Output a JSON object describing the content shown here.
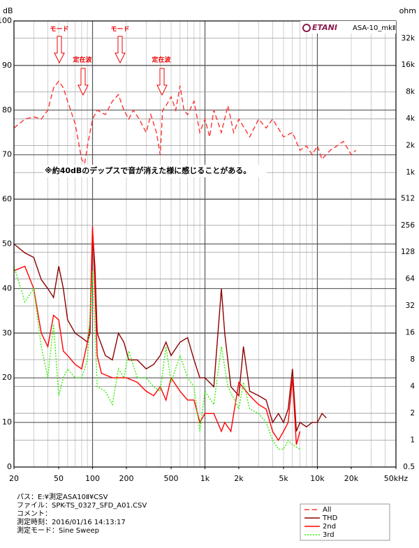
{
  "chart_data": {
    "type": "line",
    "y_axis_label": "dB",
    "y2_axis_label": "ohm",
    "brand": "ETANI",
    "model": "ASA-10_mkⅡ",
    "annotations": [
      "モード",
      "モード",
      "定在波",
      "定在波"
    ],
    "note": "※約40dBのデップスで音が消えた様に感じることがある。",
    "info": [
      "パス：E:¥測定ASA10Ⅱ¥CSV",
      "ファイル：SPK-TS_0327_SFD_A01.CSV",
      "コメント：",
      "測定時刻：2016/01/16 14:13:17",
      "測定モード：Sine Sweep"
    ],
    "x_scale": "log",
    "y2_scale": "log",
    "grid": true,
    "legend": "bottom-right",
    "xlim": [
      20,
      50000
    ],
    "xticks": [
      20,
      50,
      100,
      200,
      500,
      {
        "value": 1000,
        "label": "1k"
      },
      {
        "value": 2000,
        "label": "2k"
      },
      {
        "value": 5000,
        "label": "5k"
      },
      {
        "value": 10000,
        "label": "10k"
      },
      {
        "value": 20000,
        "label": "20k"
      },
      {
        "value": 50000,
        "label": "50kHz"
      }
    ],
    "ylim": [
      0,
      100
    ],
    "yticks": [
      0,
      10,
      20,
      30,
      40,
      50,
      60,
      70,
      80,
      90,
      100
    ],
    "y2lim": [
      0.5,
      50000
    ],
    "y2ticks": [
      0.5,
      1,
      2,
      4,
      8,
      16,
      32,
      64,
      128,
      256,
      512,
      {
        "value": 1000,
        "label": "1k"
      },
      {
        "value": 2000,
        "label": "2k"
      },
      {
        "value": 4000,
        "label": "4k"
      },
      {
        "value": 8000,
        "label": "8k"
      },
      {
        "value": 16000,
        "label": "16k"
      },
      {
        "value": 32000,
        "label": "32k"
      }
    ],
    "series": [
      {
        "name": "All",
        "color": "#ff3333",
        "style": "dashed",
        "x": [
          20,
          25,
          30,
          35,
          40,
          45,
          50,
          55,
          60,
          70,
          80,
          85,
          90,
          100,
          110,
          130,
          150,
          170,
          190,
          210,
          230,
          260,
          300,
          330,
          370,
          400,
          420,
          450,
          500,
          550,
          600,
          650,
          700,
          800,
          900,
          1000,
          1100,
          1200,
          1400,
          1600,
          1800,
          2000,
          2500,
          3000,
          3500,
          4000,
          5000,
          6000,
          7000,
          8000,
          9000,
          10000,
          11000,
          13000,
          15000,
          17000,
          19000,
          20000,
          22000
        ],
        "values": [
          76,
          78,
          78.5,
          78,
          80,
          85,
          86.5,
          85,
          82,
          77,
          69,
          68,
          72,
          78,
          80,
          79,
          82,
          83.5,
          80,
          78,
          80,
          78,
          75,
          79,
          75,
          70,
          80,
          81,
          83,
          80,
          85.5,
          80,
          79,
          82,
          75,
          78,
          74,
          80,
          75,
          81,
          75,
          78,
          74,
          78,
          76,
          78,
          74,
          75,
          71,
          72,
          70,
          72,
          69,
          71,
          72,
          73,
          71,
          70,
          71
        ]
      },
      {
        "name": "THD",
        "color": "#8b0000",
        "style": "solid",
        "x": [
          20,
          25,
          30,
          35,
          40,
          45,
          50,
          55,
          60,
          70,
          80,
          90,
          95,
          100,
          105,
          110,
          130,
          150,
          170,
          190,
          210,
          250,
          300,
          350,
          400,
          450,
          500,
          600,
          700,
          800,
          900,
          1000,
          1200,
          1400,
          1500,
          1700,
          2000,
          2200,
          2500,
          3000,
          3500,
          4000,
          4500,
          5000,
          5500,
          6000,
          6500,
          7000,
          8000,
          9000,
          10000,
          11000,
          12000
        ],
        "values": [
          50,
          48,
          47,
          42,
          40,
          38,
          45,
          40,
          33,
          30,
          29,
          28,
          30,
          53,
          45,
          30,
          25,
          24,
          30,
          28,
          24,
          24,
          22,
          23,
          25,
          28,
          25,
          28,
          29,
          24,
          20,
          20,
          18,
          40,
          30,
          18,
          16,
          27,
          17,
          16,
          15,
          10,
          12,
          10,
          13,
          22,
          8,
          10,
          9,
          10,
          10,
          12,
          11
        ]
      },
      {
        "name": "2nd",
        "color": "#ff0000",
        "style": "solid",
        "x": [
          20,
          25,
          30,
          35,
          40,
          45,
          50,
          55,
          60,
          70,
          80,
          90,
          95,
          100,
          105,
          110,
          120,
          150,
          200,
          250,
          300,
          350,
          400,
          450,
          500,
          600,
          700,
          800,
          900,
          1000,
          1200,
          1400,
          1500,
          1700,
          2000,
          2500,
          3000,
          3500,
          4000,
          4500,
          5000,
          5500,
          6000,
          6500,
          7000
        ],
        "values": [
          44,
          45,
          40,
          30,
          27,
          34,
          33,
          26,
          25,
          23,
          22,
          28,
          32,
          54,
          40,
          25,
          21,
          20,
          20,
          19,
          17,
          16,
          18,
          15,
          20,
          17,
          15,
          15,
          10,
          12,
          12,
          8,
          10,
          8,
          19,
          16,
          14,
          13,
          8,
          6,
          8,
          10,
          20,
          5,
          8
        ]
      },
      {
        "name": "3rd",
        "color": "#33ee00",
        "style": "dotted",
        "x": [
          20,
          25,
          30,
          35,
          40,
          45,
          50,
          55,
          60,
          70,
          80,
          90,
          100,
          110,
          130,
          150,
          170,
          190,
          210,
          250,
          300,
          350,
          400,
          450,
          500,
          600,
          700,
          800,
          900,
          1000,
          1200,
          1400,
          1600,
          2000,
          2200,
          2500,
          3000,
          3500,
          4000,
          4500,
          5000,
          5500,
          6000,
          7000
        ],
        "values": [
          45,
          37,
          40,
          27,
          20,
          32,
          16,
          20,
          22,
          20,
          20,
          24,
          44,
          18,
          17,
          14,
          22,
          20,
          26,
          20,
          20,
          18,
          17,
          27,
          19,
          25,
          20,
          18,
          8,
          17,
          14,
          27,
          18,
          13,
          19,
          13,
          12,
          10,
          6,
          4,
          4,
          6,
          5,
          4
        ]
      }
    ]
  }
}
